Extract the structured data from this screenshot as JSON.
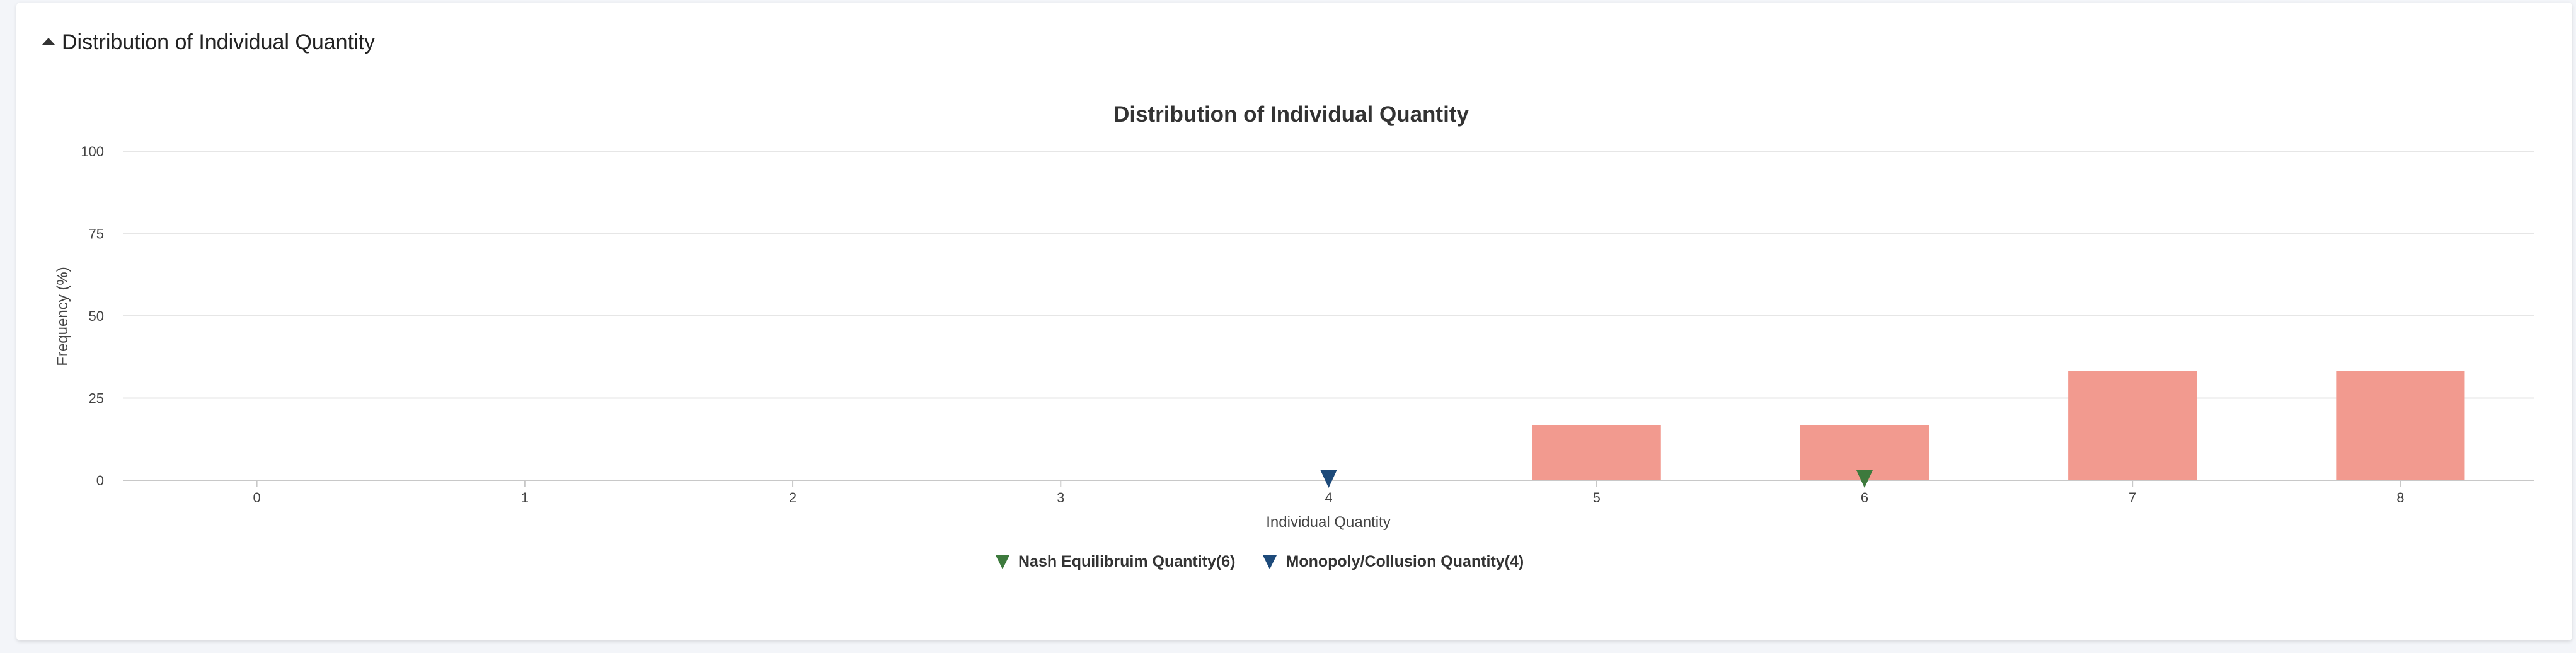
{
  "panel": {
    "title": "Distribution of Individual Quantity"
  },
  "colors": {
    "bar": "#f29a8f",
    "nash": "#3d7a3d",
    "monopoly": "#1d4a7a",
    "grid": "#e6e6e6",
    "axis": "#c8c8c8"
  },
  "chart_data": {
    "type": "bar",
    "title": "Distribution of Individual Quantity",
    "xlabel": "Individual Quantity",
    "ylabel": "Frequency (%)",
    "categories": [
      "0",
      "1",
      "2",
      "3",
      "4",
      "5",
      "6",
      "7",
      "8"
    ],
    "values": [
      0,
      0,
      0,
      0,
      0,
      16.7,
      16.7,
      33.3,
      33.3
    ],
    "ylim": [
      0,
      100
    ],
    "yticks": [
      0,
      25,
      50,
      75,
      100
    ],
    "grid": true,
    "legend_position": "bottom-center",
    "markers": [
      {
        "name": "Nash Equilibruim Quantity(6)",
        "x": "6",
        "color": "#3d7a3d"
      },
      {
        "name": "Monopoly/Collusion Quantity(4)",
        "x": "4",
        "color": "#1d4a7a"
      }
    ]
  }
}
